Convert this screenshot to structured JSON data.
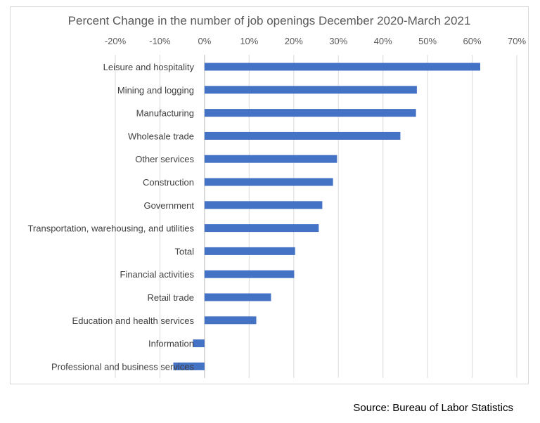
{
  "chart_data": {
    "type": "bar",
    "orientation": "horizontal",
    "title": "Percent Change in the number of job openings December 2020-March 2021",
    "categories": [
      "Leisure and hospitality",
      "Mining and logging",
      "Manufacturing",
      "Wholesale trade",
      "Other services",
      "Construction",
      "Government",
      "Transportation, warehousing, and utilities",
      "Total",
      "Financial activities",
      "Retail trade",
      "Education and health services",
      "Information",
      "Professional and business services"
    ],
    "values": [
      61.8,
      47.6,
      47.4,
      43.9,
      29.7,
      28.8,
      26.4,
      25.6,
      20.3,
      20.1,
      14.9,
      11.6,
      -2.6,
      -7.0
    ],
    "xlim": [
      -20,
      70
    ],
    "xticks": [
      -20,
      -10,
      0,
      10,
      20,
      30,
      40,
      50,
      60,
      70
    ],
    "xtick_labels": [
      "-20%",
      "-10%",
      "0%",
      "10%",
      "20%",
      "30%",
      "40%",
      "50%",
      "60%",
      "70%"
    ],
    "axis_position": "top",
    "grid": true,
    "bar_color": "#4472c4",
    "grid_color": "#d9d9d9"
  },
  "source": "Source: Bureau of Labor Statistics"
}
